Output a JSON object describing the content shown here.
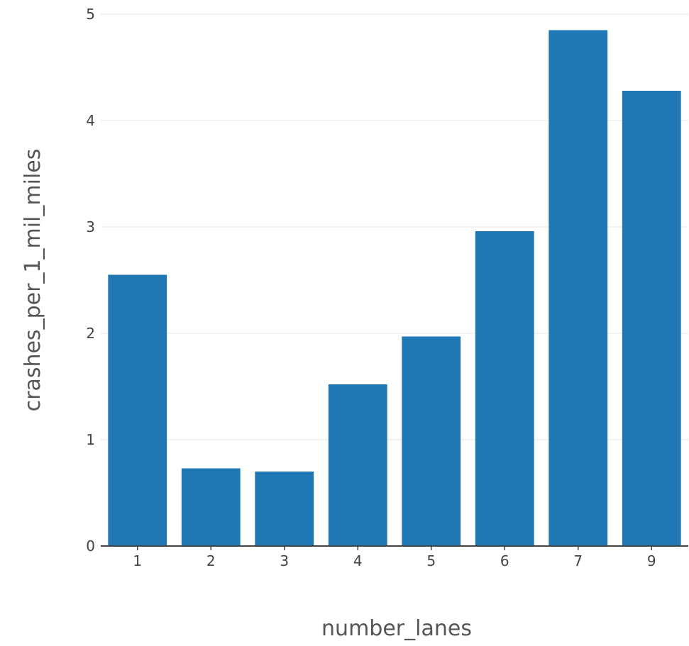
{
  "chart_data": {
    "type": "bar",
    "categories": [
      "1",
      "2",
      "3",
      "4",
      "5",
      "6",
      "7",
      "9"
    ],
    "values": [
      2.55,
      0.73,
      0.7,
      1.52,
      1.97,
      2.96,
      4.85,
      4.28
    ],
    "xlabel": "number_lanes",
    "ylabel": "crashes_per_1_mil_miles",
    "ylim": [
      0,
      5
    ],
    "yticks": [
      "0",
      "1",
      "2",
      "3",
      "4",
      "5"
    ],
    "grid": "horizontal",
    "bar_color": "#1f77b4",
    "grid_color": "#eeeeee",
    "axis_color": "#444444"
  }
}
